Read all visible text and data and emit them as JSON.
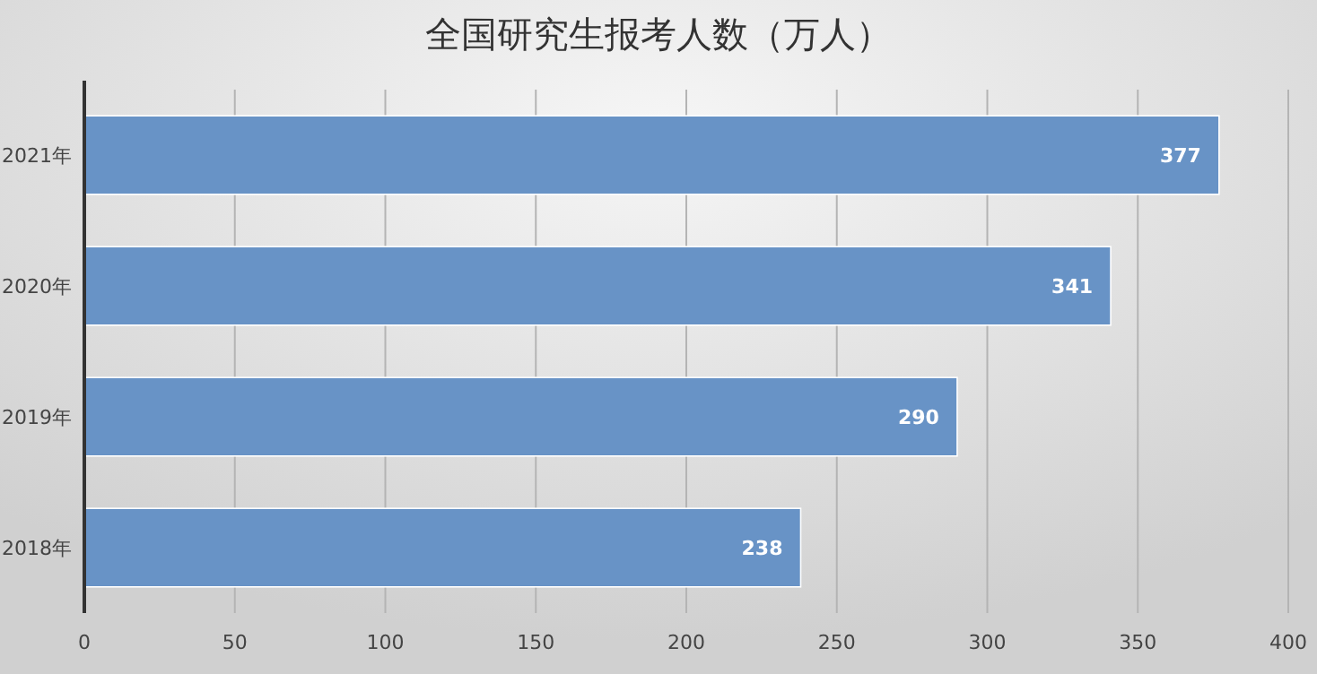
{
  "chart_data": {
    "type": "bar",
    "orientation": "horizontal",
    "title": "全国研究生报考人数（万人）",
    "categories": [
      "2021年",
      "2020年",
      "2019年",
      "2018年"
    ],
    "values": [
      377,
      341,
      290,
      238
    ],
    "color": "#6893c6",
    "xlim": [
      0,
      400
    ],
    "xticks": [
      0,
      50,
      100,
      150,
      200,
      250,
      300,
      350,
      400
    ],
    "grid": "x",
    "data_labels": true
  }
}
